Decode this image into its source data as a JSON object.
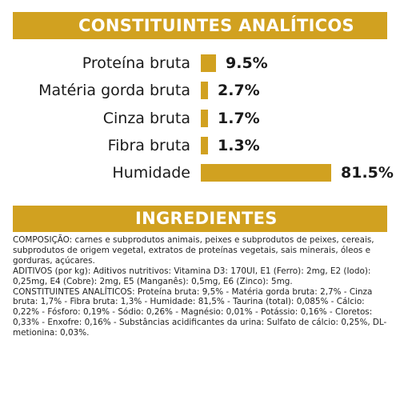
{
  "analytics": {
    "title": "CONSTITUINTES ANALÍTICOS",
    "items": [
      {
        "label": "Proteína bruta",
        "value_text": "9.5%",
        "value": 9.5
      },
      {
        "label": "Matéria gorda bruta",
        "value_text": "2.7%",
        "value": 2.7
      },
      {
        "label": "Cinza bruta",
        "value_text": "1.7%",
        "value": 1.7
      },
      {
        "label": "Fibra bruta",
        "value_text": "1.3%",
        "value": 1.3
      },
      {
        "label": "Humidade",
        "value_text": "81.5%",
        "value": 81.5
      }
    ]
  },
  "ingredients": {
    "title": "INGREDIENTES",
    "composition": "COMPOSIÇÃO: carnes e subprodutos animais, peixes e subprodutos de peixes, cereais, subprodutos de origem vegetal, extratos de proteínas vegetais, sais minerais, óleos e gorduras, açúcares.",
    "additives": "ADITIVOS (por kg): Aditivos nutritivos: Vitamina D3: 170UI, E1 (Ferro): 2mg, E2 (Iodo): 0,25mg, E4 (Cobre): 2mg, E5 (Manganês): 0,5mg, E6 (Zinco): 5mg.",
    "constituents": "CONSTITUINTES ANALÍTICOS: Proteína bruta: 9,5% - Matéria gorda bruta: 2,7% - Cinza bruta: 1,7% - Fibra bruta: 1,3% - Humidade: 81,5% - Taurina (total): 0,085% - Cálcio: 0,22% - Fósforo: 0,19% - Sódio: 0,26% - Magnésio: 0,01% - Potássio: 0,16% - Cloretos: 0,33% - Enxofre: 0,16% - Substâncias acidificantes da urina: Sulfato de cálcio: 0,25%, DL-metionina: 0,03%."
  },
  "colors": {
    "accent": "#d1a120",
    "text": "#1a1a1a"
  }
}
